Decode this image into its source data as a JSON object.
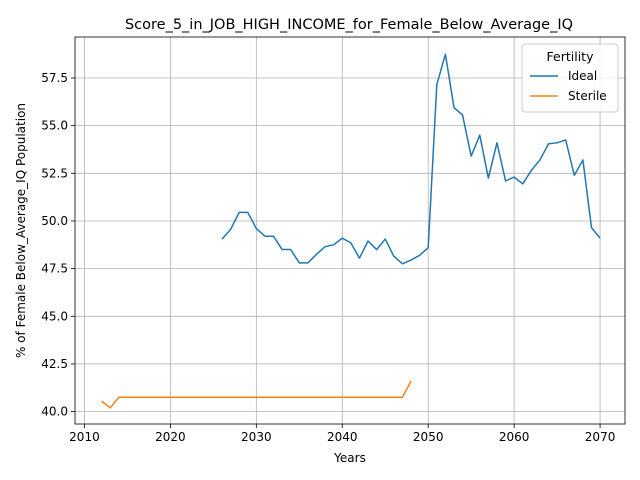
{
  "chart_data": {
    "type": "line",
    "title": "Score_5_in_JOB_HIGH_INCOME_for_Female_Below_Average_IQ",
    "xlabel": "Years",
    "ylabel": "% of Female Below_Average_IQ Population",
    "xlim": [
      2008.9,
      2072.9
    ],
    "ylim": [
      39.35,
      59.65
    ],
    "xticks": [
      2010,
      2020,
      2030,
      2040,
      2050,
      2060,
      2070
    ],
    "xtick_labels": [
      "2010",
      "2020",
      "2030",
      "2040",
      "2050",
      "2060",
      "2070"
    ],
    "yticks": [
      40.0,
      42.5,
      45.0,
      47.5,
      50.0,
      52.5,
      55.0,
      57.5
    ],
    "ytick_labels": [
      "40.0",
      "42.5",
      "45.0",
      "47.5",
      "50.0",
      "52.5",
      "55.0",
      "57.5"
    ],
    "grid": true,
    "legend": {
      "title": "Fertility",
      "position": "top-right"
    },
    "series": [
      {
        "name": "Ideal",
        "color": "#1f77b4",
        "x": [
          2026,
          2027,
          2028,
          2029,
          2030,
          2031,
          2032,
          2033,
          2034,
          2035,
          2036,
          2037,
          2038,
          2039,
          2040,
          2041,
          2042,
          2043,
          2044,
          2045,
          2046,
          2047,
          2048,
          2049,
          2050,
          2051,
          2052,
          2053,
          2054,
          2055,
          2056,
          2057,
          2058,
          2059,
          2060,
          2061,
          2062,
          2063,
          2064,
          2065,
          2066,
          2067,
          2068,
          2069,
          2070
        ],
        "y": [
          49.05,
          49.55,
          50.45,
          50.45,
          49.6,
          49.2,
          49.2,
          48.5,
          48.5,
          47.8,
          47.8,
          48.25,
          48.65,
          48.75,
          49.1,
          48.85,
          48.05,
          48.95,
          48.5,
          49.05,
          48.15,
          47.75,
          47.95,
          48.2,
          48.6,
          57.15,
          58.75,
          55.95,
          55.55,
          53.4,
          54.5,
          52.25,
          54.1,
          52.1,
          52.3,
          51.95,
          52.65,
          53.2,
          54.05,
          54.1,
          54.25,
          52.4,
          53.2,
          49.65,
          49.1
        ]
      },
      {
        "name": "Sterile",
        "color": "#ff7f0e",
        "x": [
          2012,
          2013,
          2014,
          2015,
          2016,
          2017,
          2018,
          2019,
          2020,
          2021,
          2022,
          2023,
          2024,
          2025,
          2026,
          2027,
          2028,
          2029,
          2030,
          2031,
          2032,
          2033,
          2034,
          2035,
          2036,
          2037,
          2038,
          2039,
          2040,
          2041,
          2042,
          2043,
          2044,
          2045,
          2046,
          2047,
          2048
        ],
        "y": [
          40.55,
          40.2,
          40.75,
          40.75,
          40.75,
          40.75,
          40.75,
          40.75,
          40.75,
          40.75,
          40.75,
          40.75,
          40.75,
          40.75,
          40.75,
          40.75,
          40.75,
          40.75,
          40.75,
          40.75,
          40.75,
          40.75,
          40.75,
          40.75,
          40.75,
          40.75,
          40.75,
          40.75,
          40.75,
          40.75,
          40.75,
          40.75,
          40.75,
          40.75,
          40.75,
          40.75,
          41.6
        ]
      }
    ]
  }
}
